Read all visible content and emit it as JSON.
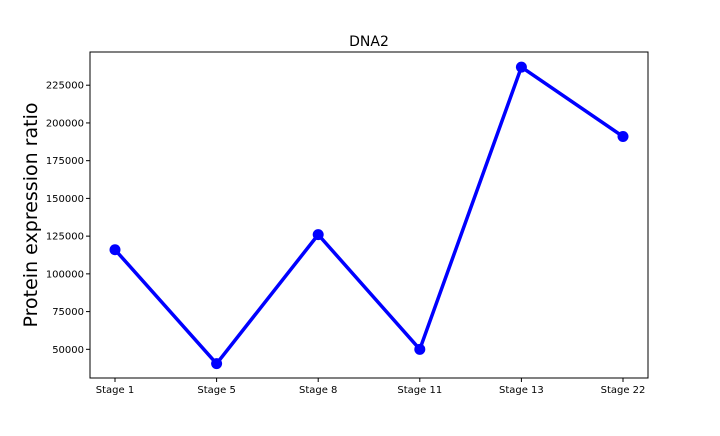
{
  "chart_data": {
    "type": "line",
    "title": "DNA2",
    "xlabel": "",
    "ylabel": "Protein expression ratio",
    "categories": [
      "Stage 1",
      "Stage 5",
      "Stage 8",
      "Stage 11",
      "Stage 13",
      "Stage 22"
    ],
    "series": [
      {
        "values": [
          116000,
          40500,
          126000,
          50000,
          237000,
          191000
        ]
      }
    ],
    "ylim": [
      31000,
      247000
    ],
    "yticks": [
      50000,
      75000,
      100000,
      125000,
      150000,
      175000,
      200000,
      225000
    ],
    "grid": false,
    "line_color": "#0000ff",
    "marker": "circle"
  }
}
